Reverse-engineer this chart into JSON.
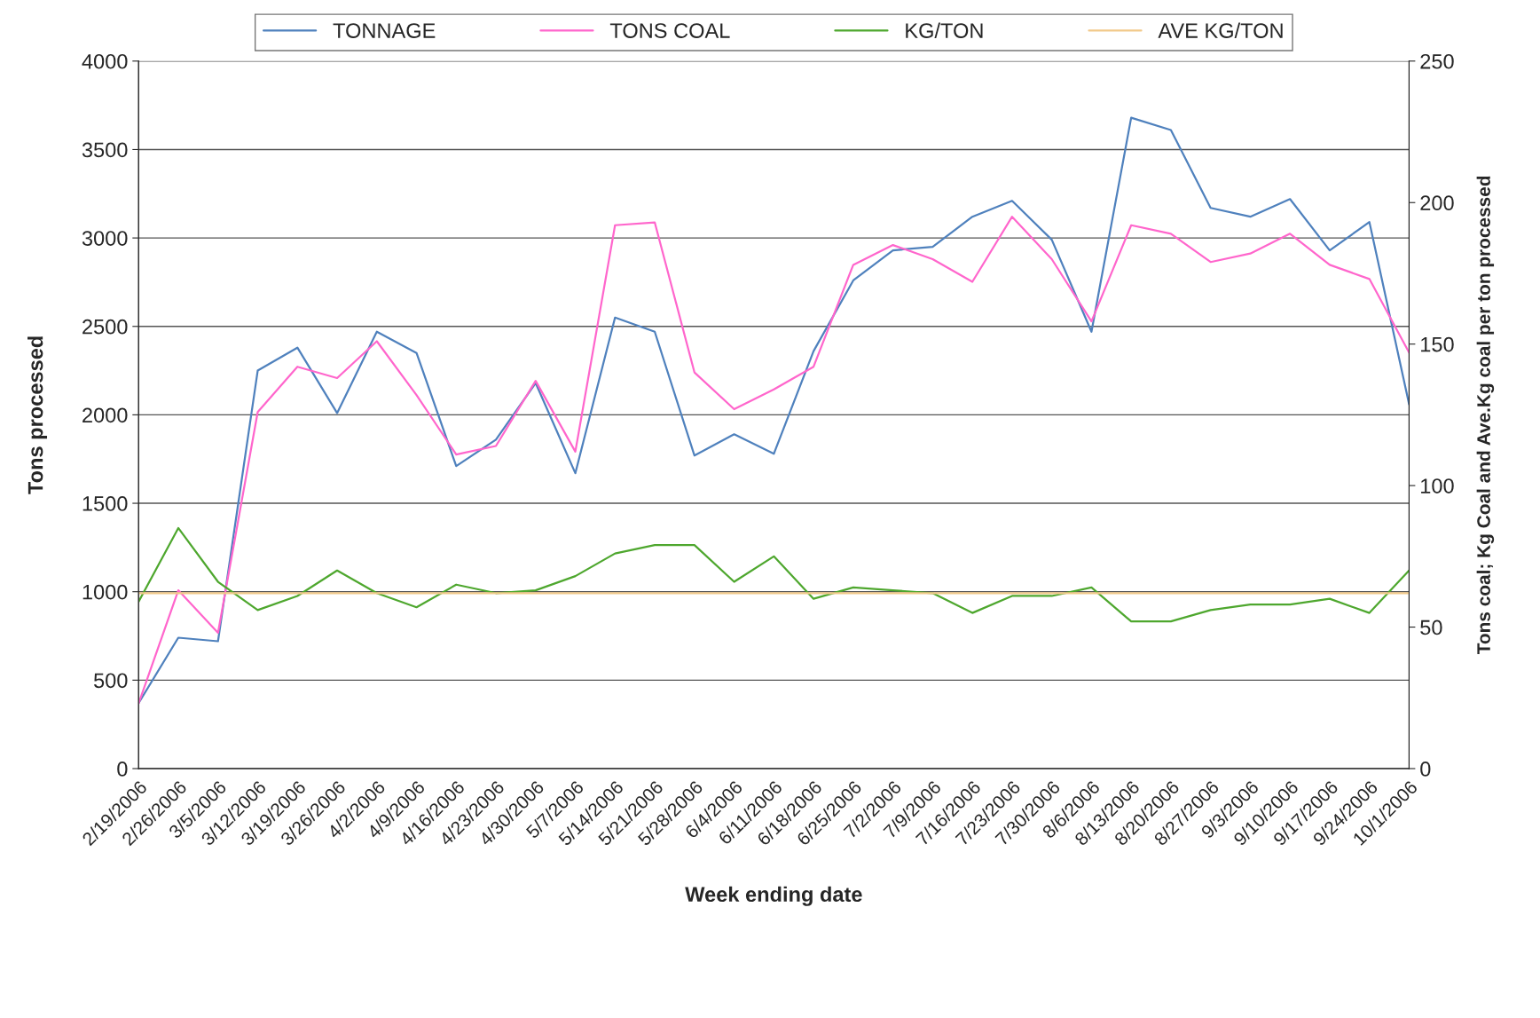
{
  "chart_data": {
    "type": "line",
    "xlabel": "Week ending date",
    "ylabel": "Tons processed",
    "y2label": "Tons coal; Kg Coal and Ave.Kg coal per ton processed",
    "categories": [
      "2/19/2006",
      "2/26/2006",
      "3/5/2006",
      "3/12/2006",
      "3/19/2006",
      "3/26/2006",
      "4/2/2006",
      "4/9/2006",
      "4/16/2006",
      "4/23/2006",
      "4/30/2006",
      "5/7/2006",
      "5/14/2006",
      "5/21/2006",
      "5/28/2006",
      "6/4/2006",
      "6/11/2006",
      "6/18/2006",
      "6/25/2006",
      "7/2/2006",
      "7/9/2006",
      "7/16/2006",
      "7/23/2006",
      "7/30/2006",
      "8/6/2006",
      "8/13/2006",
      "8/20/2006",
      "8/27/2006",
      "9/3/2006",
      "9/10/2006",
      "9/17/2006",
      "9/24/2006",
      "10/1/2006"
    ],
    "series": [
      {
        "name": "TONNAGE",
        "color": "#4f81bd",
        "values": [
          370,
          740,
          720,
          2250,
          2380,
          2010,
          2470,
          2350,
          1710,
          1860,
          2180,
          1670,
          2550,
          2470,
          1770,
          1890,
          1780,
          2360,
          2760,
          2930,
          2950,
          3120,
          3210,
          2990,
          2470,
          3680,
          3610,
          3170,
          3120,
          3220,
          2930,
          3090,
          2060
        ]
      },
      {
        "name": "TONS COAL",
        "color": "#ff66cc",
        "axis": "y2",
        "values": [
          23,
          63,
          48,
          126,
          142,
          138,
          151,
          132,
          111,
          114,
          137,
          112,
          192,
          193,
          140,
          127,
          134,
          142,
          178,
          185,
          180,
          172,
          195,
          180,
          158,
          192,
          189,
          179,
          182,
          189,
          178,
          173,
          147
        ]
      },
      {
        "name": "KG/TON",
        "color": "#4ea72e",
        "axis": "y2",
        "values": [
          59,
          85,
          66,
          56,
          61,
          70,
          62,
          57,
          65,
          62,
          63,
          68,
          76,
          79,
          79,
          66,
          75,
          60,
          64,
          63,
          62,
          55,
          61,
          61,
          64,
          52,
          52,
          56,
          58,
          58,
          60,
          55,
          70
        ]
      },
      {
        "name": "AVE KG/TON",
        "color": "#f2c98a",
        "axis": "y2",
        "values": [
          62,
          62,
          62,
          62,
          62,
          62,
          62,
          62,
          62,
          62,
          62,
          62,
          62,
          62,
          62,
          62,
          62,
          62,
          62,
          62,
          62,
          62,
          62,
          62,
          62,
          62,
          62,
          62,
          62,
          62,
          62,
          62,
          62
        ]
      }
    ],
    "ylim": [
      0,
      4000
    ],
    "yticks": [
      0,
      500,
      1000,
      1500,
      2000,
      2500,
      3000,
      3500,
      4000
    ],
    "y2lim": [
      0,
      250
    ],
    "y2ticks": [
      0,
      50,
      100,
      150,
      200,
      250
    ],
    "grid": "y",
    "legend": "top",
    "marker": "none",
    "line_style": "solid"
  }
}
